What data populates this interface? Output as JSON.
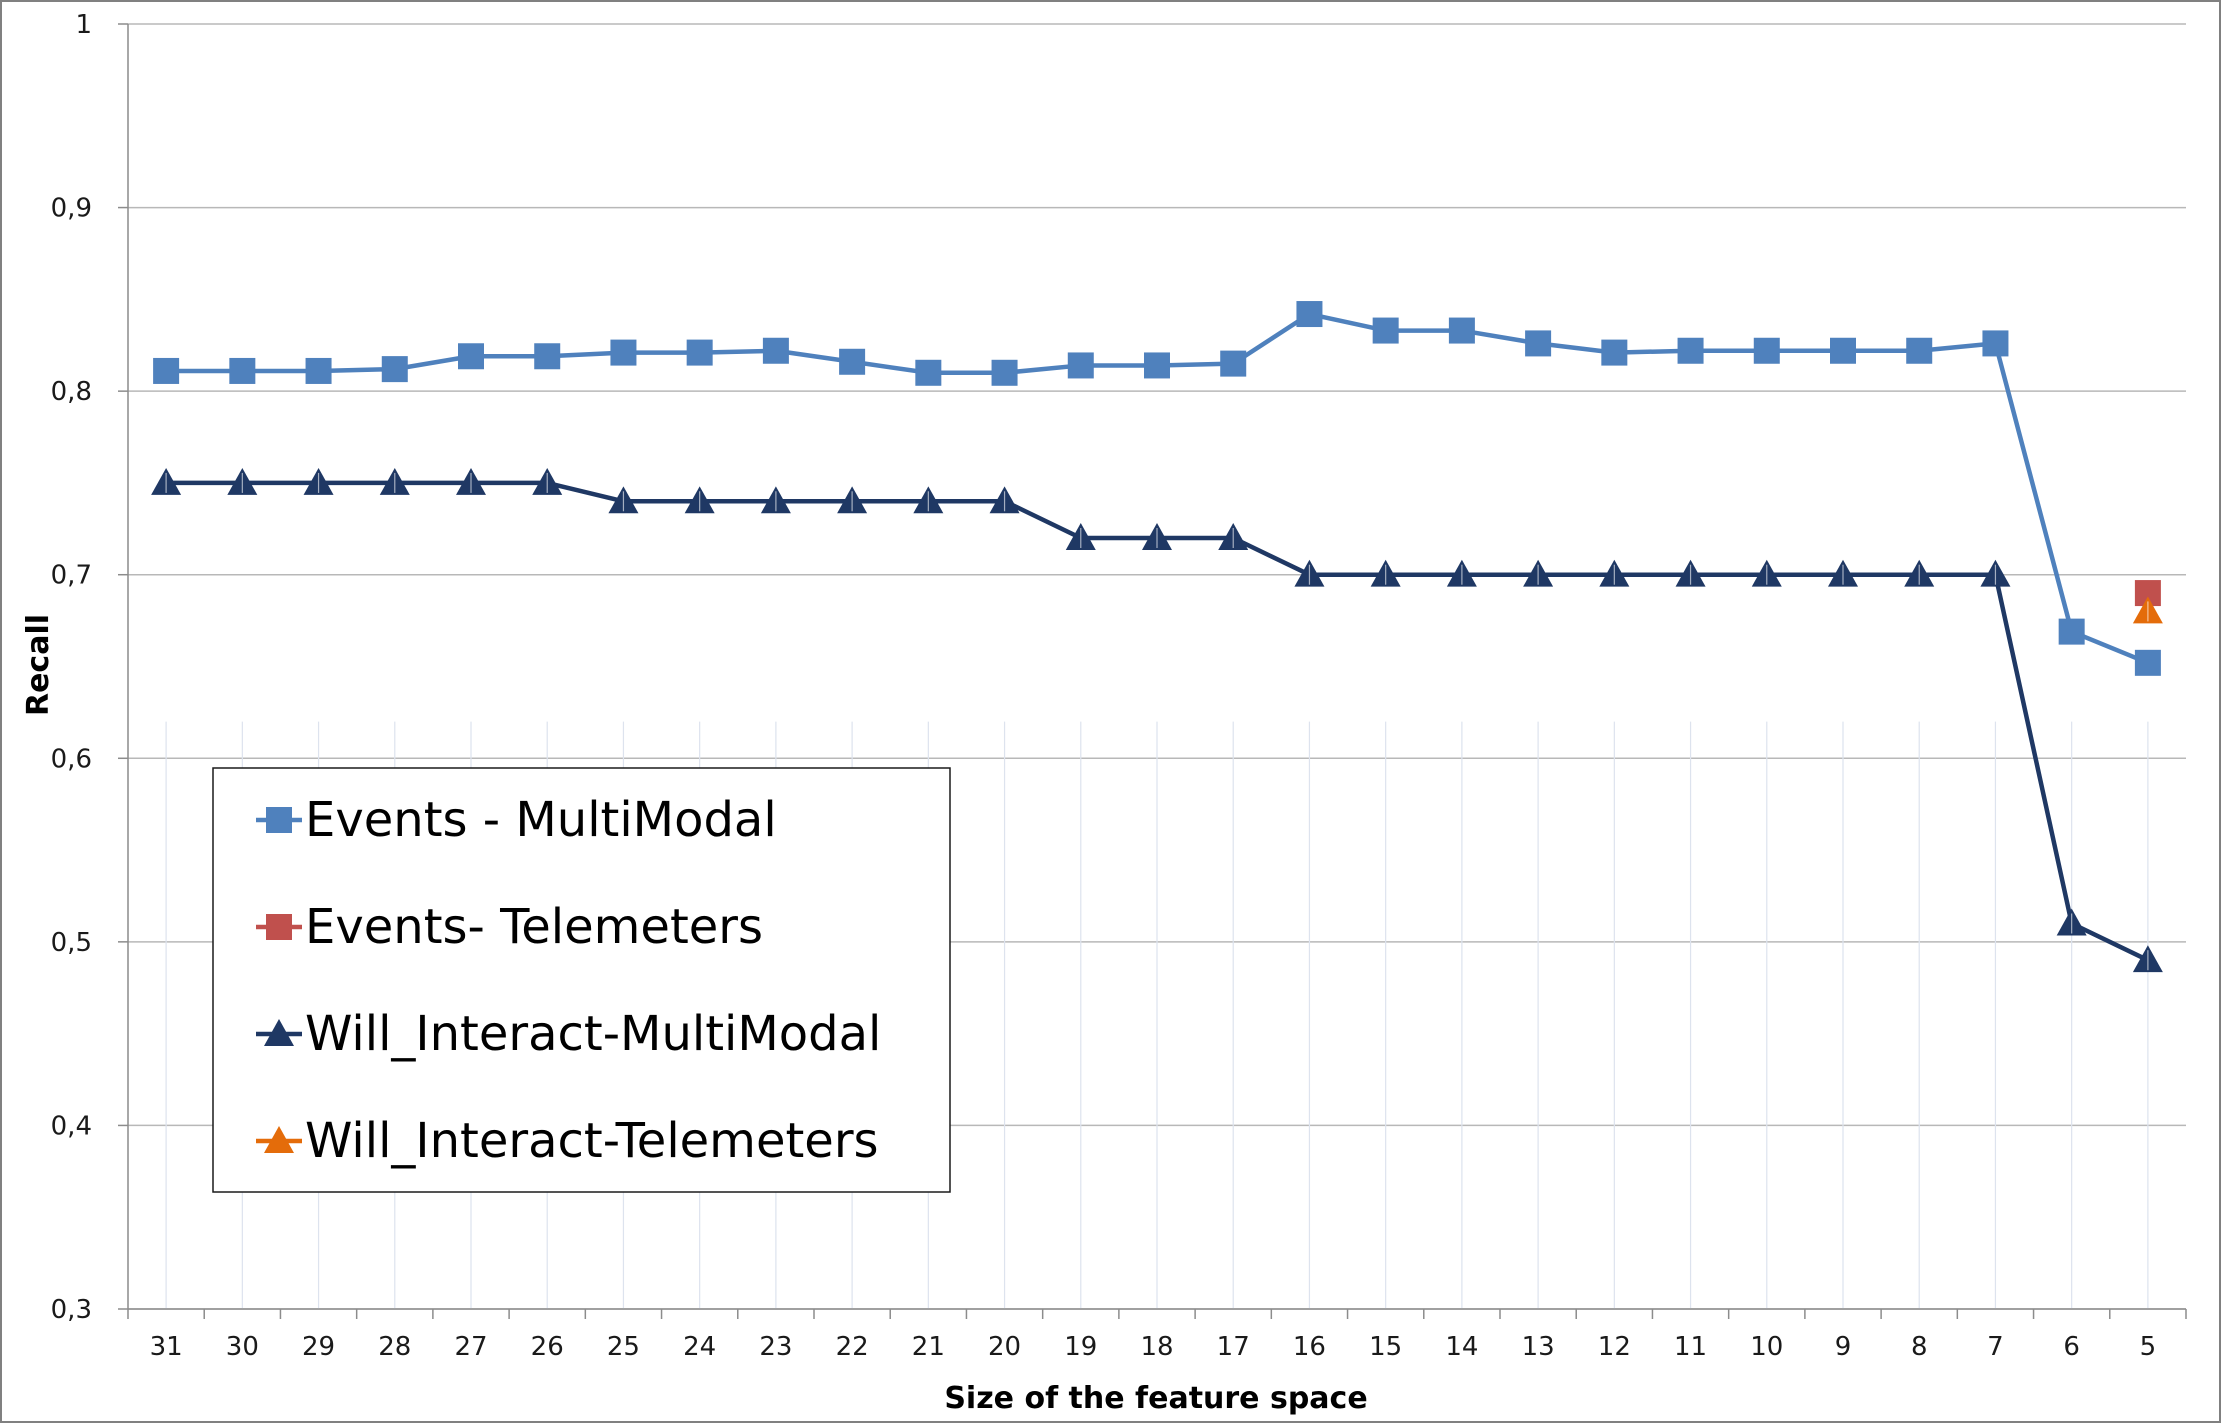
{
  "chart_data": {
    "type": "line",
    "title": "",
    "xlabel": "Size of the feature space",
    "ylabel": "Recall",
    "categories": [
      "31",
      "30",
      "29",
      "28",
      "27",
      "26",
      "25",
      "24",
      "23",
      "22",
      "21",
      "20",
      "19",
      "18",
      "17",
      "16",
      "15",
      "14",
      "13",
      "12",
      "11",
      "10",
      "9",
      "8",
      "7",
      "6",
      "5"
    ],
    "y_tick_labels": [
      "0,3",
      "0,4",
      "0,5",
      "0,6",
      "0,7",
      "0,8",
      "0,9",
      "1"
    ],
    "ylim": [
      0.3,
      1.0
    ],
    "grid": "horizontal",
    "legend_position": "left, inside plot",
    "series": [
      {
        "name": "Events - MultiModal",
        "color": "#4f81bd",
        "marker": "square",
        "values": [
          0.811,
          0.811,
          0.811,
          0.812,
          0.819,
          0.819,
          0.821,
          0.821,
          0.822,
          0.816,
          0.81,
          0.81,
          0.814,
          0.814,
          0.815,
          0.842,
          0.833,
          0.833,
          0.826,
          0.821,
          0.822,
          0.822,
          0.822,
          0.822,
          0.826,
          0.669,
          0.652
        ]
      },
      {
        "name": "Events- Telemeters",
        "color": "#c0504d",
        "marker": "square",
        "values": [
          null,
          null,
          null,
          null,
          null,
          null,
          null,
          null,
          null,
          null,
          null,
          null,
          null,
          null,
          null,
          null,
          null,
          null,
          null,
          null,
          null,
          null,
          null,
          null,
          null,
          null,
          0.69
        ]
      },
      {
        "name": "Will_Interact-MultiModal",
        "color": "#1f3864",
        "marker": "triangle",
        "values": [
          0.75,
          0.75,
          0.75,
          0.75,
          0.75,
          0.75,
          0.74,
          0.74,
          0.74,
          0.74,
          0.74,
          0.74,
          0.72,
          0.72,
          0.72,
          0.7,
          0.7,
          0.7,
          0.7,
          0.7,
          0.7,
          0.7,
          0.7,
          0.7,
          0.7,
          0.51,
          0.49
        ]
      },
      {
        "name": "Will_Interact-Telemeters",
        "color": "#e46c0a",
        "marker": "triangle",
        "values": [
          null,
          null,
          null,
          null,
          null,
          null,
          null,
          null,
          null,
          null,
          null,
          null,
          null,
          null,
          null,
          null,
          null,
          null,
          null,
          null,
          null,
          null,
          null,
          null,
          null,
          null,
          0.68
        ]
      }
    ]
  }
}
